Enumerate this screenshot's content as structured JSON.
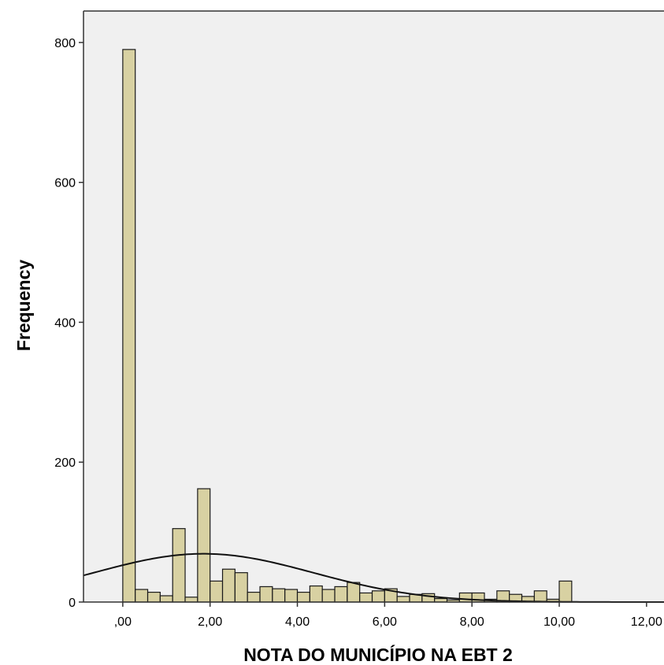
{
  "chart_data": {
    "type": "bar",
    "subtype": "histogram-with-normal-curve",
    "xlabel": "NOTA DO MUNICÍPIO NA EBT 2",
    "ylabel": "Frequency",
    "xlim": [
      -0.9,
      12.4
    ],
    "ylim": [
      0,
      845
    ],
    "x_ticks": [
      {
        "value": 0,
        "label": ",00"
      },
      {
        "value": 2,
        "label": "2,00"
      },
      {
        "value": 4,
        "label": "4,00"
      },
      {
        "value": 6,
        "label": "6,00"
      },
      {
        "value": 8,
        "label": "8,00"
      },
      {
        "value": 10,
        "label": "10,00"
      },
      {
        "value": 12,
        "label": "12,00"
      }
    ],
    "y_ticks": [
      {
        "value": 0,
        "label": "0"
      },
      {
        "value": 200,
        "label": "200"
      },
      {
        "value": 400,
        "label": "400"
      },
      {
        "value": 600,
        "label": "600"
      },
      {
        "value": 800,
        "label": "800"
      }
    ],
    "bin_width": 0.2857,
    "bins": [
      {
        "start": 0.0,
        "count": 790
      },
      {
        "start": 0.2857,
        "count": 18
      },
      {
        "start": 0.5714,
        "count": 14
      },
      {
        "start": 0.8571,
        "count": 9
      },
      {
        "start": 1.1429,
        "count": 105
      },
      {
        "start": 1.4286,
        "count": 7
      },
      {
        "start": 1.7143,
        "count": 162
      },
      {
        "start": 2.0,
        "count": 30
      },
      {
        "start": 2.2857,
        "count": 47
      },
      {
        "start": 2.5714,
        "count": 42
      },
      {
        "start": 2.8571,
        "count": 14
      },
      {
        "start": 3.1429,
        "count": 22
      },
      {
        "start": 3.4286,
        "count": 19
      },
      {
        "start": 3.7143,
        "count": 18
      },
      {
        "start": 4.0,
        "count": 14
      },
      {
        "start": 4.2857,
        "count": 23
      },
      {
        "start": 4.5714,
        "count": 18
      },
      {
        "start": 4.8571,
        "count": 22
      },
      {
        "start": 5.1429,
        "count": 28
      },
      {
        "start": 5.4286,
        "count": 13
      },
      {
        "start": 5.7143,
        "count": 16
      },
      {
        "start": 6.0,
        "count": 19
      },
      {
        "start": 6.2857,
        "count": 8
      },
      {
        "start": 6.5714,
        "count": 11
      },
      {
        "start": 6.8571,
        "count": 12
      },
      {
        "start": 7.1429,
        "count": 5
      },
      {
        "start": 7.4286,
        "count": 3
      },
      {
        "start": 7.7143,
        "count": 13
      },
      {
        "start": 8.0,
        "count": 13
      },
      {
        "start": 8.2857,
        "count": 4
      },
      {
        "start": 8.5714,
        "count": 16
      },
      {
        "start": 8.8571,
        "count": 11
      },
      {
        "start": 9.1429,
        "count": 8
      },
      {
        "start": 9.4286,
        "count": 16
      },
      {
        "start": 9.7143,
        "count": 4
      },
      {
        "start": 10.0,
        "count": 30
      }
    ],
    "normal_curve": {
      "mean": 1.85,
      "std_dev": 2.52,
      "peak": 69
    },
    "grid": false,
    "colors": {
      "bar_fill": "#D8D1A2",
      "bar_stroke": "#1A1A1A",
      "plot_background": "#F0F0F0",
      "curve": "#111111"
    }
  }
}
